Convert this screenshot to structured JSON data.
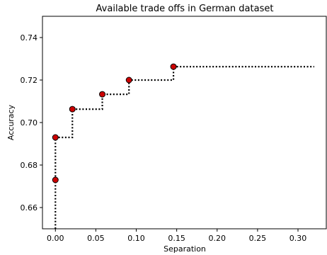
{
  "chart_data": {
    "type": "line",
    "title": "Available trade offs in German dataset",
    "xlabel": "Separation",
    "ylabel": "Accuracy",
    "xlim": [
      -0.016,
      0.335
    ],
    "ylim": [
      0.65,
      0.75
    ],
    "xticks": [
      0.0,
      0.05,
      0.1,
      0.15,
      0.2,
      0.25,
      0.3
    ],
    "xtick_labels": [
      "0.00",
      "0.05",
      "0.10",
      "0.15",
      "0.20",
      "0.25",
      "0.30"
    ],
    "yticks": [
      0.66,
      0.68,
      0.7,
      0.72,
      0.74
    ],
    "ytick_labels": [
      "0.66",
      "0.68",
      "0.70",
      "0.72",
      "0.74"
    ],
    "grid": false,
    "series": [
      {
        "line_style": "dotted",
        "line_color": "#000000",
        "marker_color": "#cc0000",
        "marker_edge_color": "#000000",
        "step_path": [
          {
            "x": 0.0,
            "y": 0.65
          },
          {
            "x": 0.0,
            "y": 0.673
          },
          {
            "x": 0.0,
            "y": 0.693
          },
          {
            "x": 0.021,
            "y": 0.693
          },
          {
            "x": 0.021,
            "y": 0.7063
          },
          {
            "x": 0.058,
            "y": 0.7063
          },
          {
            "x": 0.058,
            "y": 0.7133
          },
          {
            "x": 0.091,
            "y": 0.7133
          },
          {
            "x": 0.091,
            "y": 0.72
          },
          {
            "x": 0.146,
            "y": 0.72
          },
          {
            "x": 0.146,
            "y": 0.7263
          },
          {
            "x": 0.32,
            "y": 0.7263
          }
        ],
        "points": [
          {
            "x": 0.0,
            "y": 0.673
          },
          {
            "x": 0.0,
            "y": 0.693
          },
          {
            "x": 0.021,
            "y": 0.7063
          },
          {
            "x": 0.058,
            "y": 0.7133
          },
          {
            "x": 0.091,
            "y": 0.72
          },
          {
            "x": 0.146,
            "y": 0.7263
          }
        ]
      }
    ]
  }
}
